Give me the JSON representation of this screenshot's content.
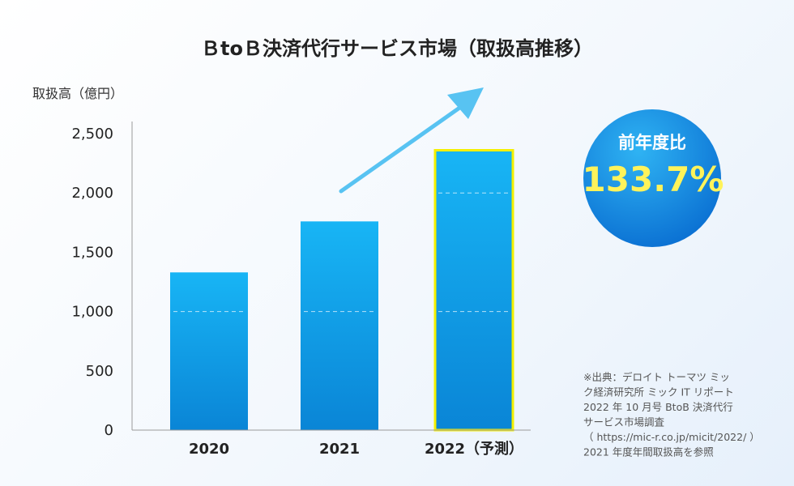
{
  "chart_data": {
    "type": "bar",
    "title": "ＢtoＢ決済代行サービス市場（取扱高推移）",
    "ylabel": "取扱高（億円）",
    "xlabel": "",
    "categories": [
      "2020",
      "2021",
      "2022（予測）"
    ],
    "values": [
      1330,
      1760,
      2360
    ],
    "ylim": [
      0,
      2500
    ],
    "yticks": [
      0,
      500,
      1000,
      1500,
      2000,
      2500
    ],
    "ytick_labels": [
      "0",
      "500",
      "1,000",
      "1,500",
      "2,000",
      "2,500"
    ],
    "highlight_index": 2,
    "grid": false,
    "colors": {
      "bar_top": "#18b5f5",
      "bar_bottom": "#0a85d6",
      "highlight_border": "#f4f000",
      "arrow": "#58c3f2",
      "axis": "#9a9a9a"
    }
  },
  "badge": {
    "heading": "前年度比",
    "value": "133.7%",
    "colors": {
      "circle_light": "#2fb3f3",
      "circle_dark": "#0a6fd2"
    }
  },
  "source_note": [
    "※出典：デロイト トーマツ ミッ",
    "ク経済研究所 ミック IT リポート",
    "2022 年 10 月号 BtoB 決済代行",
    "サービス市場調査",
    "（ https://mic-r.co.jp/micit/2022/ ）",
    "2021 年度年間取扱高を参照"
  ]
}
